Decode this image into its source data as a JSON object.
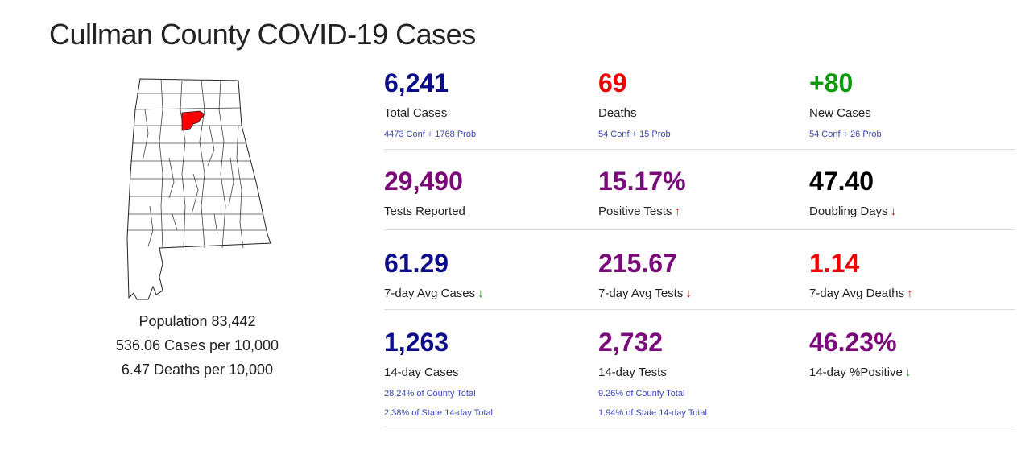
{
  "header": {
    "title": "Cullman County COVID-19 Cases"
  },
  "county_stats": {
    "population": "Population 83,442",
    "cases_per": "536.06 Cases per 10,000",
    "deaths_per": "6.47 Deaths per 10,000"
  },
  "colors": {
    "navy": "#0d0d8a",
    "red": "#ee0000",
    "green": "#0a9a0a",
    "purple": "#7a0a7a",
    "black": "#000000",
    "link": "#3b44b8",
    "highlight": "#ff0000"
  },
  "icons": {
    "up": "arrow-up-icon",
    "down": "arrow-down-icon"
  },
  "metrics": {
    "total_cases": {
      "value": "6,241",
      "label": "Total Cases",
      "sub": "4473 Conf + 1768 Prob"
    },
    "deaths": {
      "value": "69",
      "label": "Deaths",
      "sub": "54 Conf + 15 Prob"
    },
    "new_cases": {
      "value": "+80",
      "label": "New Cases",
      "sub": "54 Conf + 26 Prob"
    },
    "tests_reported": {
      "value": "29,490",
      "label": "Tests Reported"
    },
    "positive_tests": {
      "value": "15.17%",
      "label": "Positive Tests",
      "arrow": "↑"
    },
    "doubling_days": {
      "value": "47.40",
      "label": "Doubling Days",
      "arrow": "↓"
    },
    "avg_cases": {
      "value": "61.29",
      "label": "7-day Avg Cases",
      "arrow": "↓"
    },
    "avg_tests": {
      "value": "215.67",
      "label": "7-day Avg Tests",
      "arrow": "↓"
    },
    "avg_deaths": {
      "value": "1.14",
      "label": "7-day Avg Deaths",
      "arrow": "↑"
    },
    "cases_14": {
      "value": "1,263",
      "label": "14-day Cases",
      "sub1": "28.24% of County Total",
      "sub2": "2.38% of State 14-day Total"
    },
    "tests_14": {
      "value": "2,732",
      "label": "14-day Tests",
      "sub1": "9.26% of County Total",
      "sub2": "1.94% of State 14-day Total"
    },
    "positive_14": {
      "value": "46.23%",
      "label": "14-day %Positive",
      "arrow": "↓"
    }
  }
}
